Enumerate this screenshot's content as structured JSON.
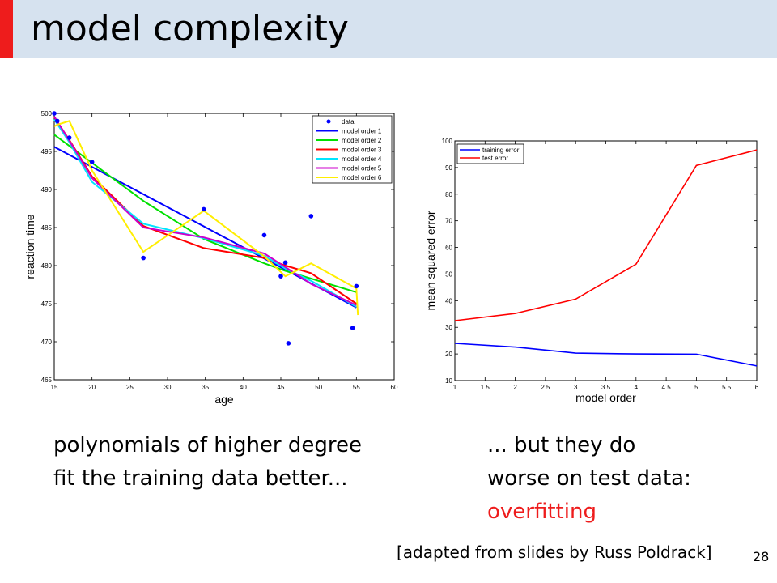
{
  "slide": {
    "title": "model complexity",
    "left_caption": [
      "polynomials of higher degree",
      "fit the training data better..."
    ],
    "right_caption": [
      "... but they do",
      "worse on test data:"
    ],
    "highlight_word": "overfitting",
    "credit": "[adapted from slides by Russ Poldrack]",
    "page_number": "28",
    "accent_color": "#ee1c1c",
    "title_bar_color": "#d6e2ef"
  },
  "chart_data": [
    {
      "type": "scatter",
      "xlabel": "age",
      "ylabel": "reaction time",
      "xlim": [
        15,
        60
      ],
      "ylim": [
        465,
        500
      ],
      "xticks": [
        15,
        20,
        25,
        30,
        35,
        40,
        45,
        50,
        55,
        60
      ],
      "yticks": [
        465,
        470,
        475,
        480,
        485,
        490,
        495,
        500
      ],
      "legend_position": "top-right",
      "points": {
        "name": "data",
        "color": "#0000ff",
        "x": [
          15,
          15.4,
          17,
          20,
          26.8,
          34.8,
          42.8,
          45,
          45.6,
          46,
          49,
          54.5,
          55
        ],
        "y": [
          500,
          499,
          496.8,
          493.6,
          481,
          487.4,
          484,
          478.6,
          480.4,
          469.8,
          486.5,
          471.8,
          477.3
        ]
      },
      "series": [
        {
          "name": "model order 1",
          "color": "#0000ff",
          "x": [
            15,
            55
          ],
          "y": [
            495.6,
            474.5
          ]
        },
        {
          "name": "model order 2",
          "color": "#00e000",
          "x": [
            15,
            20,
            26.8,
            34.8,
            42.8,
            45.6,
            49,
            55
          ],
          "y": [
            497.2,
            493.5,
            488.5,
            483.5,
            480.3,
            479.3,
            478.3,
            476.5
          ]
        },
        {
          "name": "model order 3",
          "color": "#ff0000",
          "x": [
            15,
            17,
            20,
            26.8,
            34.8,
            42.8,
            45.6,
            49,
            55
          ],
          "y": [
            499.5,
            496.5,
            491.7,
            485.2,
            482.3,
            481,
            480,
            479,
            475
          ]
        },
        {
          "name": "model order 4",
          "color": "#00e5ff",
          "x": [
            15,
            17,
            20,
            26.8,
            34.8,
            42.8,
            45.6,
            49,
            55
          ],
          "y": [
            499.2,
            496.2,
            491,
            485.5,
            483.6,
            481.3,
            479.6,
            478,
            474.6
          ]
        },
        {
          "name": "model order 5",
          "color": "#cc00cc",
          "x": [
            15,
            17,
            20,
            26.8,
            34.8,
            42.8,
            45.6,
            49,
            55
          ],
          "y": [
            499.6,
            496.4,
            491.5,
            485,
            483.7,
            481.6,
            479.8,
            477.6,
            474.8
          ]
        },
        {
          "name": "model order 6",
          "color": "#ffee00",
          "x": [
            15,
            15.4,
            17,
            20,
            26.8,
            34.8,
            42.8,
            45.6,
            49,
            55,
            55.2
          ],
          "y": [
            498.3,
            498.5,
            499,
            492.5,
            481.8,
            487.2,
            481.2,
            478.6,
            480.3,
            477,
            473.5
          ]
        }
      ]
    },
    {
      "type": "line",
      "xlabel": "model order",
      "ylabel": "mean squared error",
      "xlim": [
        1,
        6
      ],
      "ylim": [
        10,
        100
      ],
      "xticks": [
        "1",
        "1.5",
        "2",
        "2.5",
        "3",
        "3.5",
        "4",
        "4.5",
        "5",
        "5.5",
        "6"
      ],
      "yticks": [
        "10",
        "20",
        "30",
        "40",
        "50",
        "60",
        "70",
        "80",
        "90",
        "100"
      ],
      "legend_position": "top-left",
      "x": [
        1,
        2,
        3,
        4,
        5,
        6
      ],
      "series": [
        {
          "name": "training error",
          "color": "#0000ff",
          "values": [
            24,
            22.6,
            20.3,
            20,
            19.9,
            15.5
          ]
        },
        {
          "name": "test error",
          "color": "#ff0000",
          "values": [
            32.5,
            35.2,
            40.6,
            53.7,
            90.8,
            96.6
          ]
        }
      ]
    }
  ]
}
